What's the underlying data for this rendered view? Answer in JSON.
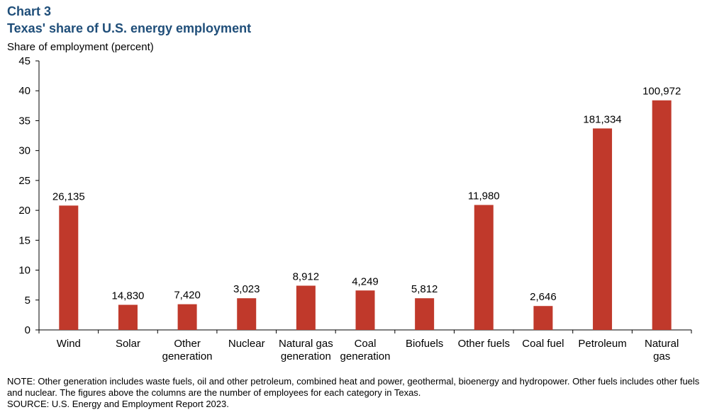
{
  "header": {
    "chart_label": "Chart 3",
    "title": "Texas' share of U.S. energy employment",
    "ylabel": "Share of employment  (percent)"
  },
  "footer": {
    "note": "NOTE: Other generation includes waste fuels, oil and other petroleum, combined heat and power, geothermal, bioenergy and hydropower. Other fuels includes other fuels and nuclear. The figures above the columns are the number of employees for each category in Texas.",
    "source": "SOURCE: U.S. Energy and Employment Report 2023."
  },
  "colors": {
    "bar": "#c0392b",
    "axis": "#000000"
  },
  "chart_data": {
    "type": "bar",
    "title": "Texas' share of U.S. energy employment",
    "xlabel": "",
    "ylabel": "Share of employment  (percent)",
    "ylim": [
      0,
      45
    ],
    "yticks": [
      0,
      5,
      10,
      15,
      20,
      25,
      30,
      35,
      40,
      45
    ],
    "grid": false,
    "categories": [
      [
        "Wind"
      ],
      [
        "Solar"
      ],
      [
        "Other",
        "generation"
      ],
      [
        "Nuclear"
      ],
      [
        "Natural gas",
        "generation"
      ],
      [
        "Coal",
        "generation"
      ],
      [
        "Biofuels"
      ],
      [
        "Other fuels"
      ],
      [
        "Coal fuel"
      ],
      [
        "Petroleum"
      ],
      [
        "Natural",
        "gas"
      ]
    ],
    "values": [
      20.8,
      4.2,
      4.3,
      5.3,
      7.4,
      6.6,
      5.3,
      20.9,
      4.0,
      33.7,
      38.4
    ],
    "data_labels": [
      "26,135",
      "14,830",
      "7,420",
      "3,023",
      "8,912",
      "4,249",
      "5,812",
      "11,980",
      "2,646",
      "181,334",
      "100,972"
    ]
  }
}
